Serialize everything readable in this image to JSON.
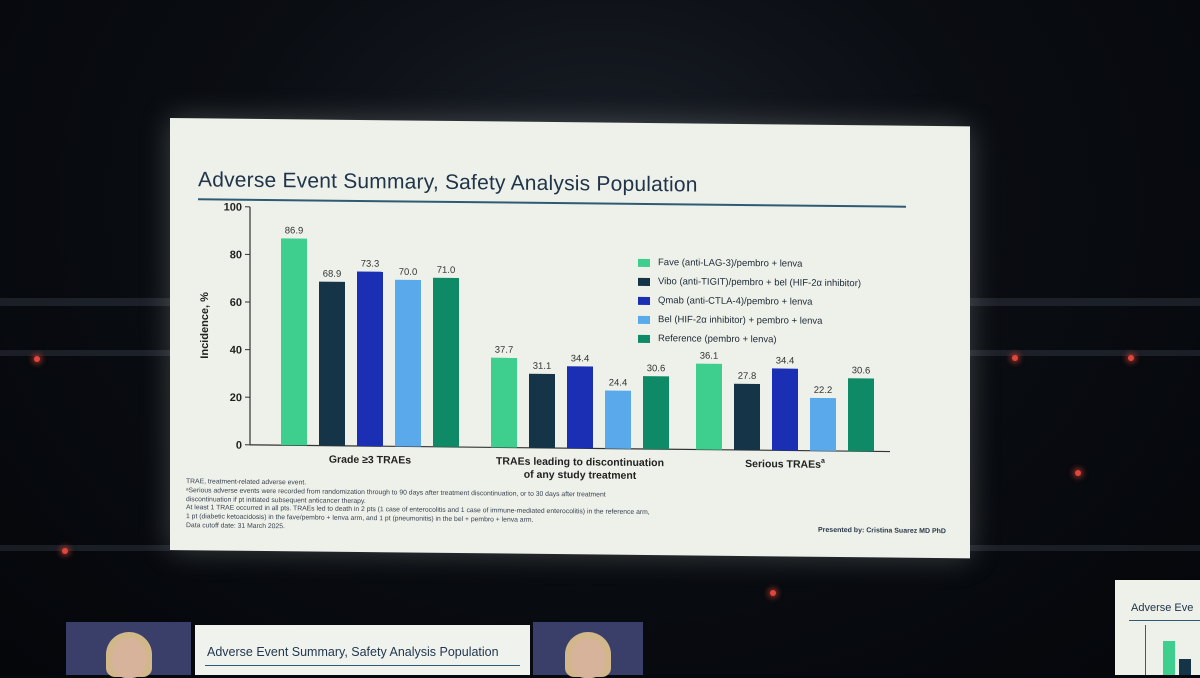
{
  "slide": {
    "title": "Adverse Event Summary, Safety Analysis Population",
    "presenter": "Presented by: Cristina Suarez MD PhD"
  },
  "footnotes": [
    "TRAE, treatment-related adverse event.",
    "ᵃSerious adverse events were recorded from randomization through to 90 days after treatment discontinuation, or to 30 days after treatment",
    "discontinuation if pt initiated subsequent anticancer therapy.",
    "At least 1 TRAE occurred in all pts. TRAEs led to death in 2 pts (1 case of enterocolitis and 1 case of immune-mediated enterocolitis) in the reference arm,",
    "1 pt (diabetic ketoacidosis) in the fave/pembro + lenva arm, and 1 pt (pneumonitis) in the bel + pembro + lenva arm.",
    "Data cutoff date: 31 March 2025."
  ],
  "lower_screen": {
    "title": "Adverse Event Summary, Safety Analysis Population"
  },
  "side_screen": {
    "title": "Adverse Eve"
  },
  "chart_data": {
    "type": "bar",
    "title": "Adverse Event Summary, Safety Analysis Population",
    "ylabel": "Incidence, %",
    "xlabel": "",
    "ylim": [
      0,
      100
    ],
    "yticks": [
      0,
      20,
      40,
      60,
      80,
      100
    ],
    "categories": [
      [
        "Grade ≥3 TRAEs"
      ],
      [
        "TRAEs leading to discontinuation",
        "of any study treatment"
      ],
      [
        "Serious TRAEs"
      ]
    ],
    "category_superscripts": [
      "",
      "",
      "a"
    ],
    "legend_position": "right",
    "series": [
      {
        "name": "Fave (anti-LAG-3)/pembro + lenva",
        "color": "#3ecf8e",
        "values": [
          86.9,
          37.7,
          36.1
        ],
        "labels": [
          "86.9",
          "37.7",
          "36.1"
        ]
      },
      {
        "name": "Vibo (anti-TIGIT)/pembro + bel (HIF-2α inhibitor)",
        "color": "#163447",
        "values": [
          68.9,
          31.1,
          27.8
        ],
        "labels": [
          "68.9",
          "31.1",
          "27.8"
        ]
      },
      {
        "name": "Qmab (anti-CTLA-4)/pembro + lenva",
        "color": "#1b2fb5",
        "values": [
          73.3,
          34.4,
          34.4
        ],
        "labels": [
          "73.3",
          "34.4",
          "34.4"
        ]
      },
      {
        "name": "Bel (HIF-2α inhibitor) + pembro + lenva",
        "color": "#5aa9ea",
        "values": [
          70.0,
          24.4,
          22.2
        ],
        "labels": [
          "70.0",
          "24.4",
          "22.2"
        ]
      },
      {
        "name": "Reference (pembro + lenva)",
        "color": "#0e8a66",
        "values": [
          71.0,
          30.6,
          30.6
        ],
        "labels": [
          "71.0",
          "30.6",
          "30.6"
        ]
      }
    ]
  }
}
